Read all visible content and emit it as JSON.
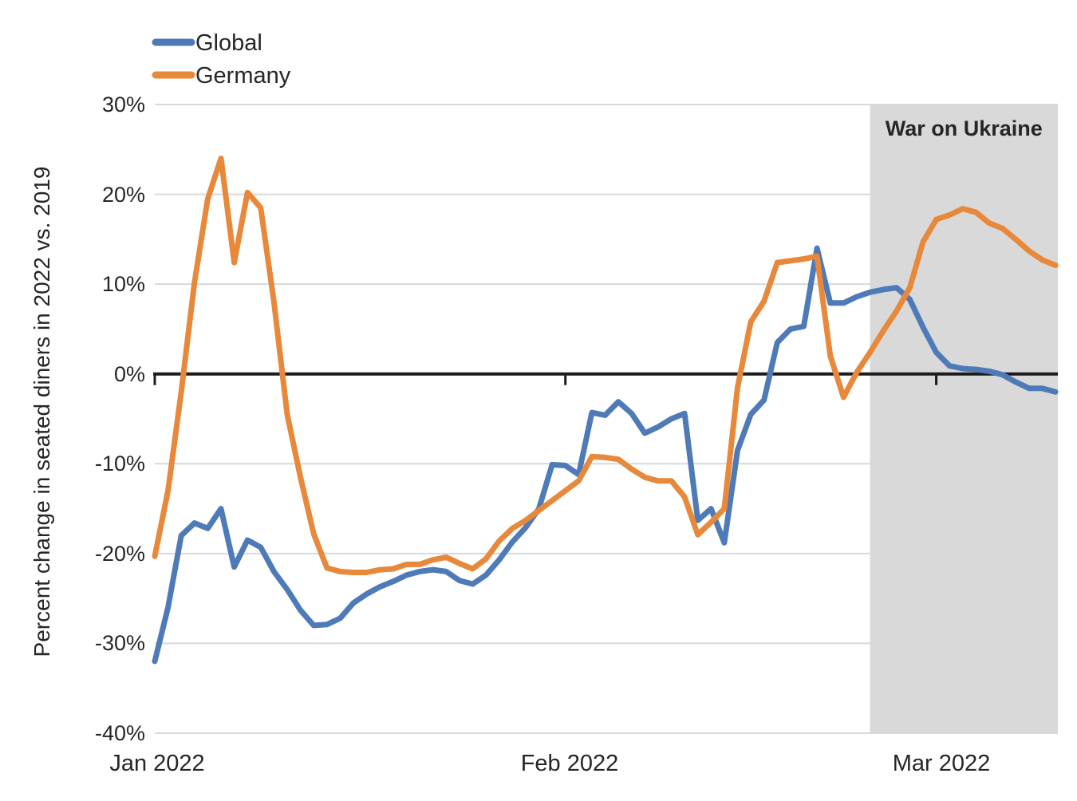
{
  "y_axis": {
    "title": "Percent change in seated diners in 2022 vs. 2019",
    "ticks": [
      "30%",
      "20%",
      "10%",
      "0%",
      "-10%",
      "-20%",
      "-30%",
      "-40%"
    ]
  },
  "x_axis": {
    "ticks": [
      {
        "label": "Jan 2022",
        "index": 0
      },
      {
        "label": "Feb 2022",
        "index": 31
      },
      {
        "label": "Mar 2022",
        "index": 59
      }
    ]
  },
  "chart_data": {
    "type": "line",
    "title": "",
    "xlabel": "",
    "ylabel": "Percent change in seated diners in 2022 vs. 2019",
    "ylim": [
      -40,
      30
    ],
    "grid": true,
    "legend_position": "top-left",
    "x": [
      "Jan 1",
      "Jan 2",
      "Jan 3",
      "Jan 4",
      "Jan 5",
      "Jan 6",
      "Jan 7",
      "Jan 8",
      "Jan 9",
      "Jan 10",
      "Jan 11",
      "Jan 12",
      "Jan 13",
      "Jan 14",
      "Jan 15",
      "Jan 16",
      "Jan 17",
      "Jan 18",
      "Jan 19",
      "Jan 20",
      "Jan 21",
      "Jan 22",
      "Jan 23",
      "Jan 24",
      "Jan 25",
      "Jan 26",
      "Jan 27",
      "Jan 28",
      "Jan 29",
      "Jan 30",
      "Jan 31",
      "Feb 1",
      "Feb 2",
      "Feb 3",
      "Feb 4",
      "Feb 5",
      "Feb 6",
      "Feb 7",
      "Feb 8",
      "Feb 9",
      "Feb 10",
      "Feb 11",
      "Feb 12",
      "Feb 13",
      "Feb 14",
      "Feb 15",
      "Feb 16",
      "Feb 17",
      "Feb 18",
      "Feb 19",
      "Feb 20",
      "Feb 21",
      "Feb 22",
      "Feb 23",
      "Feb 24",
      "Feb 25",
      "Feb 26",
      "Feb 27",
      "Feb 28",
      "Mar 1",
      "Mar 2",
      "Mar 3",
      "Mar 4",
      "Mar 5",
      "Mar 6",
      "Mar 7",
      "Mar 8",
      "Mar 9",
      "Mar 10"
    ],
    "series": [
      {
        "name": "Global",
        "color": "#4e7ab8",
        "values": [
          -32,
          -26,
          -18,
          -16.6,
          -17.2,
          -15,
          -21.5,
          -18.5,
          -19.3,
          -22,
          -24,
          -26.3,
          -28,
          -27.9,
          -27.2,
          -25.5,
          -24.5,
          -23.7,
          -23.1,
          -22.4,
          -22,
          -21.8,
          -22,
          -23,
          -23.4,
          -22.4,
          -20.7,
          -18.7,
          -17.1,
          -15,
          -10.1,
          -10.2,
          -11.2,
          -4.3,
          -4.6,
          -3.1,
          -4.4,
          -6.6,
          -5.9,
          -5,
          -4.4,
          -16.3,
          -15,
          -18.8,
          -8.5,
          -4.5,
          -2.9,
          3.5,
          5,
          5.3,
          14,
          7.9,
          7.9,
          8.6,
          9.1,
          9.4,
          9.6,
          8.3,
          5.2,
          2.4,
          0.9,
          0.6,
          0.5,
          0.3,
          -0.1,
          -0.9,
          -1.6,
          -1.6,
          -2
        ]
      },
      {
        "name": "Germany",
        "color": "#e8883a",
        "values": [
          -20.3,
          -13,
          -2,
          10.2,
          19.5,
          24,
          12.4,
          20.2,
          18.5,
          8,
          -4.5,
          -11.5,
          -17.8,
          -21.6,
          -22,
          -22.1,
          -22.1,
          -21.8,
          -21.7,
          -21.2,
          -21.2,
          -20.7,
          -20.4,
          -21.1,
          -21.7,
          -20.6,
          -18.6,
          -17.2,
          -16.3,
          -15.2,
          -14.1,
          -13,
          -11.9,
          -9.2,
          -9.3,
          -9.5,
          -10.6,
          -11.5,
          -11.9,
          -11.9,
          -13.7,
          -17.9,
          -16.5,
          -15,
          -1.5,
          5.8,
          8.1,
          12.4,
          12.6,
          12.8,
          13.1,
          2,
          -2.6,
          0.2,
          2.4,
          4.8,
          7,
          9.6,
          14.7,
          17.2,
          17.7,
          18.4,
          18,
          16.8,
          16.2,
          15,
          13.7,
          12.7,
          12.1
        ]
      }
    ],
    "shaded_region": {
      "label": "War on Ukraine",
      "start": "Feb 24",
      "end": "Mar 10",
      "start_index": 54,
      "fill": "#d9d9d9",
      "label_color": "#a3a3a3"
    }
  }
}
